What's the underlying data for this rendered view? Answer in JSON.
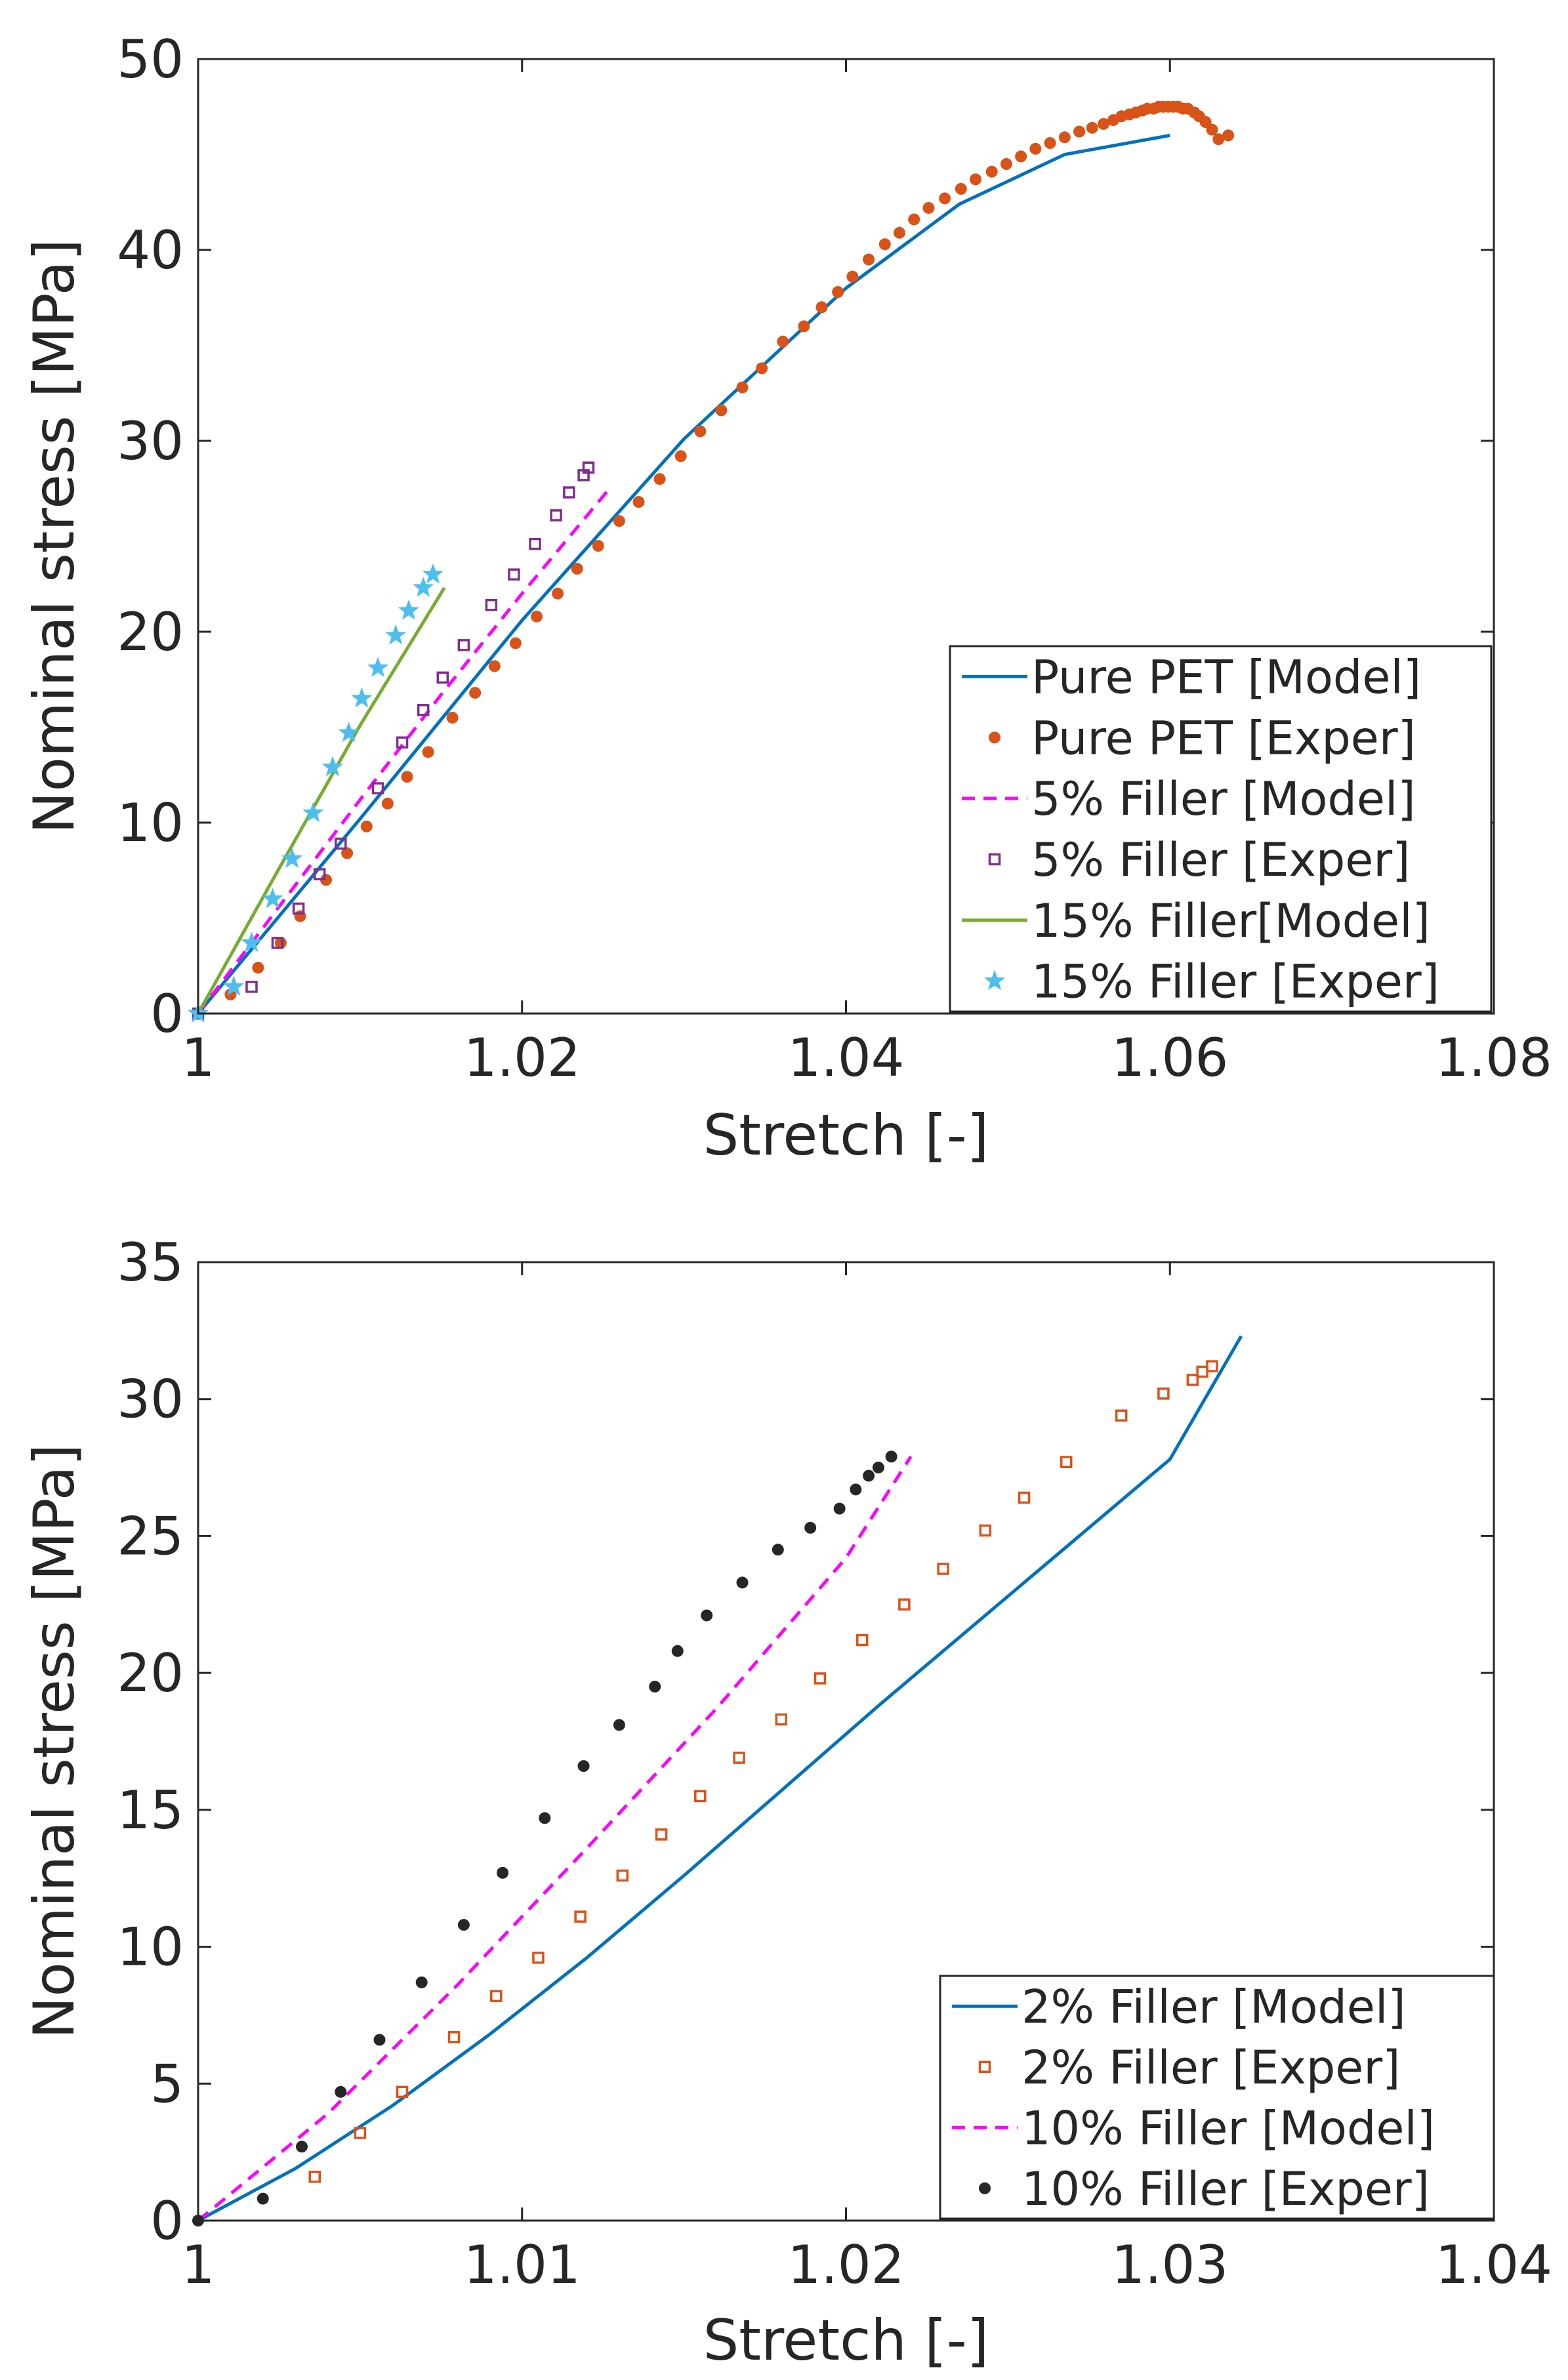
{
  "chart_data": [
    {
      "type": "line",
      "title": "",
      "xlabel": "Stretch [-]",
      "ylabel": "Nominal stress [MPa]",
      "xlim": [
        1,
        1.08
      ],
      "ylim": [
        0,
        50
      ],
      "xticks": [
        1,
        1.02,
        1.04,
        1.06,
        1.08
      ],
      "xtick_labels": [
        "1",
        "1.02",
        "1.04",
        "1.06",
        "1.08"
      ],
      "yticks": [
        0,
        10,
        20,
        30,
        40,
        50
      ],
      "ytick_labels": [
        "0",
        "10",
        "20",
        "30",
        "40",
        "50"
      ],
      "grid": false,
      "legend_position": "bottom-right",
      "series": [
        {
          "name": "Pure PET [Model]",
          "style": "line",
          "color": "#0072BD",
          "x": [
            1.0,
            1.01,
            1.02,
            1.03,
            1.04,
            1.047,
            1.0535,
            1.06
          ],
          "y": [
            0,
            10.2,
            20.6,
            30.1,
            38.0,
            42.4,
            45.0,
            46.0
          ]
        },
        {
          "name": "Pure PET [Exper]",
          "style": "dot",
          "color": "#D95319",
          "x": [
            1.0,
            1.002,
            1.0037,
            1.0051,
            1.0063,
            1.0079,
            1.0092,
            1.0104,
            1.0117,
            1.0129,
            1.0142,
            1.0157,
            1.0171,
            1.0183,
            1.0196,
            1.0209,
            1.0222,
            1.0234,
            1.0247,
            1.026,
            1.0272,
            1.0285,
            1.0298,
            1.031,
            1.0323,
            1.0336,
            1.0348,
            1.0361,
            1.0374,
            1.0385,
            1.0395,
            1.0404,
            1.0414,
            1.0424,
            1.0433,
            1.0442,
            1.0451,
            1.0461,
            1.0471,
            1.048,
            1.049,
            1.0499,
            1.0508,
            1.0517,
            1.0526,
            1.0535,
            1.0544,
            1.0552,
            1.0559,
            1.0565,
            1.057,
            1.0575,
            1.0579,
            1.0583,
            1.0586,
            1.059,
            1.0593,
            1.0596,
            1.0599,
            1.0602,
            1.0605,
            1.0608,
            1.0611,
            1.0615,
            1.0618,
            1.0622,
            1.0626,
            1.063,
            1.0636
          ],
          "y": [
            0,
            1.0,
            2.4,
            3.7,
            5.1,
            7.0,
            8.4,
            9.8,
            11.0,
            12.4,
            13.7,
            15.5,
            16.8,
            18.2,
            19.4,
            20.8,
            22.0,
            23.3,
            24.5,
            25.8,
            26.8,
            28.0,
            29.2,
            30.5,
            31.6,
            32.8,
            33.8,
            35.2,
            36.0,
            37.0,
            37.8,
            38.6,
            39.5,
            40.3,
            40.9,
            41.6,
            42.2,
            42.7,
            43.2,
            43.7,
            44.1,
            44.5,
            44.9,
            45.3,
            45.6,
            45.9,
            46.2,
            46.4,
            46.6,
            46.8,
            47.0,
            47.1,
            47.2,
            47.3,
            47.4,
            47.4,
            47.5,
            47.5,
            47.5,
            47.5,
            47.5,
            47.4,
            47.4,
            47.2,
            47.0,
            46.7,
            46.3,
            45.8,
            46.0
          ]
        },
        {
          "name": "5% Filler [Model]",
          "style": "dashed",
          "color": "#FF00FF",
          "x": [
            1.0,
            1.005,
            1.01,
            1.015,
            1.02,
            1.0253
          ],
          "y": [
            0,
            5.6,
            11.2,
            16.7,
            22.0,
            27.4
          ]
        },
        {
          "name": "5% Filler [Exper]",
          "style": "square",
          "color": "#7E2F8E",
          "x": [
            1.0,
            1.0033,
            1.0049,
            1.0062,
            1.0075,
            1.0088,
            1.0111,
            1.0126,
            1.0139,
            1.0151,
            1.0164,
            1.0181,
            1.0195,
            1.0208,
            1.0221,
            1.0229,
            1.0238,
            1.0241
          ],
          "y": [
            0,
            1.4,
            3.7,
            5.5,
            7.3,
            8.9,
            11.8,
            14.2,
            15.9,
            17.6,
            19.3,
            21.4,
            23.0,
            24.6,
            26.1,
            27.3,
            28.2,
            28.6
          ]
        },
        {
          "name": "15% Filler[Model]",
          "style": "line",
          "color": "#77AC30",
          "x": [
            1.0,
            1.005,
            1.01,
            1.0152
          ],
          "y": [
            0,
            7.6,
            15.1,
            22.3
          ]
        },
        {
          "name": "15% Filler [Exper]",
          "style": "star",
          "color": "#4DBEEE",
          "x": [
            1.0,
            1.0022,
            1.0033,
            1.0046,
            1.0058,
            1.0071,
            1.0083,
            1.0093,
            1.0101,
            1.0111,
            1.0122,
            1.013,
            1.0139,
            1.0145
          ],
          "y": [
            0,
            1.4,
            3.7,
            6.0,
            8.1,
            10.5,
            12.9,
            14.7,
            16.5,
            18.1,
            19.8,
            21.1,
            22.3,
            23.0
          ]
        }
      ]
    },
    {
      "type": "line",
      "title": "",
      "xlabel": "Stretch [-]",
      "ylabel": "Nominal stress [MPa]",
      "xlim": [
        1,
        1.04
      ],
      "ylim": [
        0,
        35
      ],
      "xticks": [
        1,
        1.01,
        1.02,
        1.03,
        1.04
      ],
      "xtick_labels": [
        "1",
        "1.01",
        "1.02",
        "1.03",
        "1.04"
      ],
      "yticks": [
        0,
        5,
        10,
        15,
        20,
        25,
        30,
        35
      ],
      "ytick_labels": [
        "0",
        "5",
        "10",
        "15",
        "20",
        "25",
        "30",
        "35"
      ],
      "grid": false,
      "legend_position": "bottom-right",
      "series": [
        {
          "name": "2% Filler [Model]",
          "style": "line",
          "color": "#0072BD",
          "x": [
            1.0,
            1.003,
            1.006,
            1.009,
            1.012,
            1.015,
            1.018,
            1.021,
            1.024,
            1.027,
            1.03,
            1.0322
          ],
          "y": [
            0,
            1.9,
            4.2,
            6.8,
            9.6,
            12.6,
            15.7,
            18.8,
            21.8,
            24.8,
            27.8,
            32.3
          ]
        },
        {
          "name": "2% Filler [Exper]",
          "style": "square",
          "color": "#D95319",
          "x": [
            1.0036,
            1.005,
            1.0063,
            1.0079,
            1.0092,
            1.0105,
            1.0118,
            1.0131,
            1.0143,
            1.0155,
            1.0167,
            1.018,
            1.0192,
            1.0205,
            1.0218,
            1.023,
            1.0243,
            1.0255,
            1.0268,
            1.0285,
            1.0298,
            1.0307,
            1.031,
            1.0313
          ],
          "y": [
            1.6,
            3.2,
            4.7,
            6.7,
            8.2,
            9.6,
            11.1,
            12.6,
            14.1,
            15.5,
            16.9,
            18.3,
            19.8,
            21.2,
            22.5,
            23.8,
            25.2,
            26.4,
            27.7,
            29.4,
            30.2,
            30.7,
            31.0,
            31.2
          ]
        },
        {
          "name": "10% Filler [Model]",
          "style": "dashed",
          "color": "#FF00FF",
          "x": [
            1.0,
            1.004,
            1.008,
            1.012,
            1.016,
            1.02,
            1.022
          ],
          "y": [
            0,
            3.9,
            8.6,
            13.6,
            18.7,
            24.2,
            27.9
          ]
        },
        {
          "name": "10% Filler [Exper]",
          "style": "dot",
          "color": "#262626",
          "x": [
            1.0,
            1.002,
            1.0032,
            1.0044,
            1.0056,
            1.0069,
            1.0082,
            1.0094,
            1.0107,
            1.0119,
            1.013,
            1.0141,
            1.0148,
            1.0157,
            1.0168,
            1.0179,
            1.0189,
            1.0198,
            1.0203,
            1.0207,
            1.021,
            1.0214
          ],
          "y": [
            0,
            0.8,
            2.7,
            4.7,
            6.6,
            8.7,
            10.8,
            12.7,
            14.7,
            16.6,
            18.1,
            19.5,
            20.8,
            22.1,
            23.3,
            24.5,
            25.3,
            26.0,
            26.7,
            27.2,
            27.5,
            27.9
          ]
        }
      ]
    }
  ]
}
